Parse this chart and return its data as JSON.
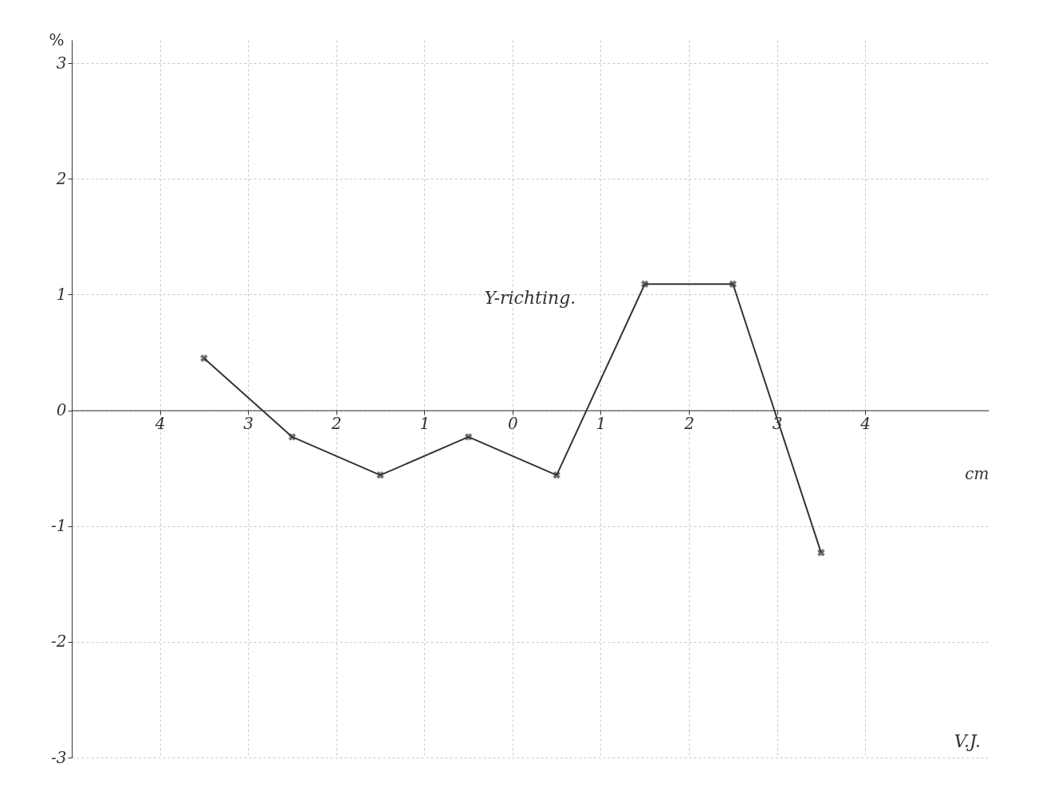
{
  "chart_data": {
    "type": "line",
    "xlabel": "cm",
    "ylabel": "%",
    "x": [
      -3.5,
      -2.5,
      -1.5,
      -0.5,
      0.5,
      1.5,
      2.5,
      3.5
    ],
    "series": [
      {
        "color": "#333333",
        "values": [
          0.45,
          -0.23,
          -0.56,
          -0.23,
          -0.56,
          1.09,
          1.09,
          -1.23
        ]
      }
    ],
    "xlim": [
      -5,
      5.4
    ],
    "ylim": [
      -3,
      3.2
    ],
    "xticks": [
      {
        "value": -4,
        "label": "4"
      },
      {
        "value": -3,
        "label": "3"
      },
      {
        "value": -2,
        "label": "2"
      },
      {
        "value": -1,
        "label": "1"
      },
      0,
      1,
      2,
      3,
      4
    ],
    "yticks": [
      -3,
      -2,
      -1,
      0,
      1,
      2,
      3
    ],
    "annotations": [
      "Y-richting.",
      "V.J."
    ],
    "grid": true,
    "marker": "cross",
    "line_style": "solid"
  }
}
